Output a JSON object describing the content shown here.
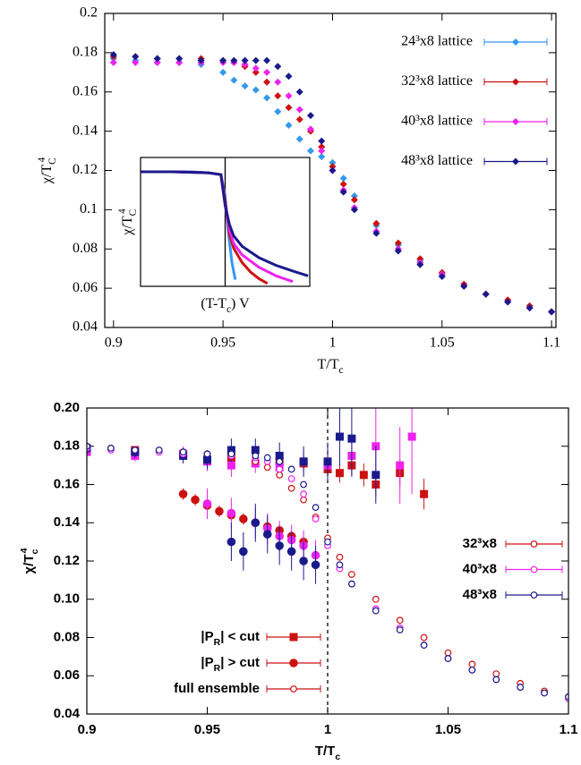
{
  "chart_data": [
    {
      "type": "scatter",
      "x_label": [
        {
          "text": "T/T"
        },
        {
          "text": "c",
          "sub": true
        }
      ],
      "y_label": [
        {
          "text": "χ/T"
        },
        {
          "text": "C",
          "sub": true
        },
        {
          "text": "4",
          "sup": true
        }
      ],
      "xlim": [
        0.896,
        1.102
      ],
      "ylim": [
        0.04,
        0.2
      ],
      "xticks": [
        0.9,
        0.95,
        1,
        1.05,
        1.1
      ],
      "yticks": [
        0.04,
        0.06,
        0.08,
        0.1,
        0.12,
        0.14,
        0.16,
        0.18,
        0.2
      ],
      "legend": "top-right",
      "marker": "diamond",
      "x": [
        0.9,
        0.91,
        0.92,
        0.93,
        0.94,
        0.95,
        0.955,
        0.96,
        0.965,
        0.97,
        0.975,
        0.98,
        0.985,
        0.99,
        0.995,
        1.0,
        1.005,
        1.01,
        1.02,
        1.03,
        1.04,
        1.05,
        1.06,
        1.07,
        1.08,
        1.09,
        1.1
      ],
      "series": [
        {
          "name": "24³x8 lattice",
          "color": "#3399ee",
          "values": [
            0.177,
            0.176,
            0.175,
            0.175,
            0.174,
            0.17,
            0.166,
            0.163,
            0.161,
            0.157,
            0.15,
            0.143,
            0.136,
            0.13,
            0.127,
            0.124,
            0.116,
            0.107,
            0.092,
            0.082,
            0.074,
            0.067,
            0.061,
            0.057,
            0.053,
            0.05,
            0.048
          ]
        },
        {
          "name": "32³x8 lattice",
          "color": "#cc1111",
          "values": [
            0.178,
            0.178,
            0.177,
            0.177,
            0.177,
            0.176,
            0.175,
            0.173,
            0.17,
            0.165,
            0.158,
            0.152,
            0.146,
            0.14,
            0.132,
            0.122,
            0.113,
            0.105,
            0.093,
            0.083,
            0.075,
            0.068,
            0.062,
            0.057,
            0.054,
            0.051,
            0.048
          ]
        },
        {
          "name": "40³x8 lattice",
          "color": "#ee22ee",
          "values": [
            0.175,
            0.175,
            0.175,
            0.175,
            0.175,
            0.175,
            0.175,
            0.174,
            0.172,
            0.17,
            0.165,
            0.158,
            0.151,
            0.141,
            0.13,
            0.12,
            0.11,
            0.101,
            0.089,
            0.08,
            0.073,
            0.067,
            0.061,
            0.057,
            0.053,
            0.05,
            0.048
          ]
        },
        {
          "name": "48³x8 lattice",
          "color": "#1a1a8c",
          "values": [
            0.179,
            0.178,
            0.177,
            0.177,
            0.176,
            0.176,
            0.176,
            0.176,
            0.176,
            0.176,
            0.173,
            0.168,
            0.16,
            0.148,
            0.135,
            0.12,
            0.109,
            0.1,
            0.088,
            0.079,
            0.072,
            0.066,
            0.061,
            0.057,
            0.053,
            0.05,
            0.048
          ]
        }
      ]
    },
    {
      "type": "line",
      "x_label": [
        {
          "text": "(T-T"
        },
        {
          "text": "c",
          "sub": true
        },
        {
          "text": ") V"
        }
      ],
      "y_label": [
        {
          "text": "χ/T"
        },
        {
          "text": "C",
          "sub": true
        },
        {
          "text": "4",
          "sup": true
        }
      ],
      "xlim": [
        -1,
        1
      ],
      "ylim": [
        0.055,
        0.19
      ],
      "vline": 0,
      "series": [
        {
          "color": "#3399ee",
          "x": [
            -1,
            -0.8,
            -0.6,
            -0.4,
            -0.2,
            -0.05,
            0,
            0.04,
            0.08,
            0.12
          ],
          "values": [
            0.175,
            0.175,
            0.175,
            0.175,
            0.174,
            0.172,
            0.15,
            0.11,
            0.08,
            0.062
          ]
        },
        {
          "color": "#cc1111",
          "x": [
            -1,
            -0.6,
            -0.2,
            -0.05,
            0,
            0.05,
            0.1,
            0.2,
            0.3,
            0.4,
            0.5
          ],
          "values": [
            0.175,
            0.175,
            0.174,
            0.172,
            0.145,
            0.11,
            0.095,
            0.08,
            0.07,
            0.063,
            0.058
          ]
        },
        {
          "color": "#ee22ee",
          "x": [
            -1,
            -0.6,
            -0.2,
            -0.05,
            0,
            0.05,
            0.1,
            0.2,
            0.4,
            0.6,
            0.8
          ],
          "values": [
            0.175,
            0.175,
            0.174,
            0.172,
            0.14,
            0.115,
            0.1,
            0.088,
            0.075,
            0.066,
            0.06
          ]
        },
        {
          "color": "#1a1a8c",
          "x": [
            -1,
            -0.6,
            -0.2,
            -0.05,
            0,
            0.05,
            0.1,
            0.2,
            0.4,
            0.6,
            0.8,
            0.98
          ],
          "values": [
            0.175,
            0.175,
            0.174,
            0.172,
            0.14,
            0.12,
            0.108,
            0.097,
            0.085,
            0.077,
            0.071,
            0.066
          ]
        }
      ]
    },
    {
      "type": "scatter",
      "x_label": [
        {
          "text": "T/T"
        },
        {
          "text": "c",
          "sub": true
        }
      ],
      "y_label": [
        {
          "text": "χ/T"
        },
        {
          "text": "c",
          "sub": true
        },
        {
          "text": "4",
          "sup": true
        }
      ],
      "xlim": [
        0.9,
        1.1
      ],
      "ylim": [
        0.04,
        0.2
      ],
      "vline": 1,
      "xticks": [
        0.9,
        0.95,
        1,
        1.05,
        1.1
      ],
      "yticks": [
        0.04,
        0.06,
        0.08,
        {
          "value": 0.1,
          "label": "0.10"
        },
        0.12,
        0.14,
        0.16,
        0.18,
        {
          "value": 0.2,
          "label": "0.20"
        }
      ],
      "lattices": [
        {
          "name": "32³x8",
          "color": "#cc1111"
        },
        {
          "name": "40³x8",
          "color": "#ee22ee"
        },
        {
          "name": "48³x8",
          "color": "#1a1a8c"
        }
      ],
      "ensembles": [
        {
          "label": [
            {
              "text": "|P"
            },
            {
              "text": "R",
              "sub": true
            },
            {
              "text": "| < cut"
            }
          ],
          "marker": "square"
        },
        {
          "label": [
            {
              "text": "|P"
            },
            {
              "text": "R",
              "sub": true
            },
            {
              "text": "| > cut"
            }
          ],
          "marker": "circle"
        },
        {
          "label": [
            {
              "text": "full ensemble"
            }
          ],
          "marker": "open-circle"
        }
      ],
      "x": [
        0.9,
        0.91,
        0.92,
        0.93,
        0.94,
        0.95,
        0.96,
        0.97,
        0.975,
        0.98,
        0.985,
        0.99,
        0.995,
        1.0,
        1.005,
        1.01,
        1.02,
        1.03,
        1.04,
        1.05,
        1.06,
        1.07,
        1.08,
        1.09,
        1.1
      ],
      "series": [
        {
          "lattice": 0,
          "ensemble": 0,
          "x": [
            0.9,
            0.92,
            0.94,
            0.96,
            0.98,
            0.99,
            1.0,
            1.005,
            1.01,
            1.015,
            1.02,
            1.03,
            1.04
          ],
          "values": [
            0.179,
            0.178,
            0.176,
            0.174,
            0.172,
            0.171,
            0.168,
            0.166,
            0.17,
            0.165,
            0.16,
            0.166,
            0.155
          ],
          "errors": [
            0.002,
            0.002,
            0.002,
            0.003,
            0.003,
            0.004,
            0.004,
            0.005,
            0.005,
            0.006,
            0.006,
            0.007,
            0.008
          ]
        },
        {
          "lattice": 1,
          "ensemble": 0,
          "x": [
            0.9,
            0.92,
            0.94,
            0.95,
            0.96,
            0.97,
            0.98,
            0.99,
            1.0,
            1.01,
            1.02,
            1.03,
            1.035
          ],
          "values": [
            0.177,
            0.175,
            0.176,
            0.172,
            0.17,
            0.171,
            0.169,
            0.172,
            0.17,
            0.175,
            0.18,
            0.17,
            0.185
          ],
          "errors": [
            0.003,
            0.003,
            0.004,
            0.005,
            0.006,
            0.005,
            0.006,
            0.006,
            0.008,
            0.01,
            0.02,
            0.02,
            0.03
          ]
        },
        {
          "lattice": 2,
          "ensemble": 0,
          "x": [
            0.9,
            0.92,
            0.94,
            0.95,
            0.96,
            0.97,
            0.98,
            0.99,
            1.0,
            1.005,
            1.01,
            1.02
          ],
          "values": [
            0.179,
            0.177,
            0.175,
            0.173,
            0.178,
            0.178,
            0.175,
            0.172,
            0.172,
            0.185,
            0.184,
            0.165
          ],
          "errors": [
            0.003,
            0.003,
            0.004,
            0.005,
            0.006,
            0.006,
            0.007,
            0.008,
            0.01,
            0.015,
            0.02,
            0.015
          ]
        },
        {
          "lattice": 0,
          "ensemble": 1,
          "x": [
            0.94,
            0.945,
            0.95,
            0.955,
            0.96,
            0.965,
            0.97,
            0.975,
            0.98,
            0.985,
            0.99
          ],
          "values": [
            0.155,
            0.152,
            0.149,
            0.146,
            0.144,
            0.142,
            0.14,
            0.138,
            0.136,
            0.133,
            0.13
          ],
          "errors": [
            0.003,
            0.003,
            0.003,
            0.003,
            0.003,
            0.003,
            0.003,
            0.003,
            0.003,
            0.003,
            0.003
          ]
        },
        {
          "lattice": 1,
          "ensemble": 1,
          "x": [
            0.95,
            0.96,
            0.97,
            0.975,
            0.98,
            0.985,
            0.99,
            0.995
          ],
          "values": [
            0.15,
            0.145,
            0.14,
            0.137,
            0.133,
            0.131,
            0.128,
            0.123
          ],
          "errors": [
            0.008,
            0.008,
            0.008,
            0.008,
            0.008,
            0.008,
            0.008,
            0.008
          ]
        },
        {
          "lattice": 2,
          "ensemble": 1,
          "x": [
            0.96,
            0.965,
            0.97,
            0.975,
            0.98,
            0.985,
            0.99,
            0.995
          ],
          "values": [
            0.13,
            0.125,
            0.14,
            0.134,
            0.128,
            0.125,
            0.12,
            0.118
          ],
          "errors": [
            0.01,
            0.01,
            0.01,
            0.01,
            0.01,
            0.01,
            0.01,
            0.01
          ]
        },
        {
          "lattice": 0,
          "ensemble": 2,
          "values": [
            0.18,
            0.179,
            0.178,
            0.177,
            0.177,
            0.176,
            0.175,
            0.172,
            0.169,
            0.165,
            0.158,
            0.152,
            0.143,
            0.132,
            0.122,
            0.113,
            0.1,
            0.089,
            0.08,
            0.072,
            0.066,
            0.061,
            0.056,
            0.052,
            0.049
          ]
        },
        {
          "lattice": 1,
          "ensemble": 2,
          "values": [
            0.179,
            0.178,
            0.178,
            0.177,
            0.176,
            0.176,
            0.175,
            0.174,
            0.172,
            0.168,
            0.163,
            0.155,
            0.142,
            0.128,
            0.116,
            0.108,
            0.095,
            0.085,
            0.076,
            0.069,
            0.063,
            0.058,
            0.054,
            0.051,
            0.048
          ]
        },
        {
          "lattice": 2,
          "ensemble": 2,
          "values": [
            0.18,
            0.179,
            0.178,
            0.178,
            0.177,
            0.176,
            0.176,
            0.175,
            0.174,
            0.172,
            0.168,
            0.16,
            0.148,
            0.13,
            0.118,
            0.108,
            0.094,
            0.084,
            0.076,
            0.069,
            0.063,
            0.058,
            0.054,
            0.051,
            0.049
          ]
        }
      ]
    }
  ]
}
